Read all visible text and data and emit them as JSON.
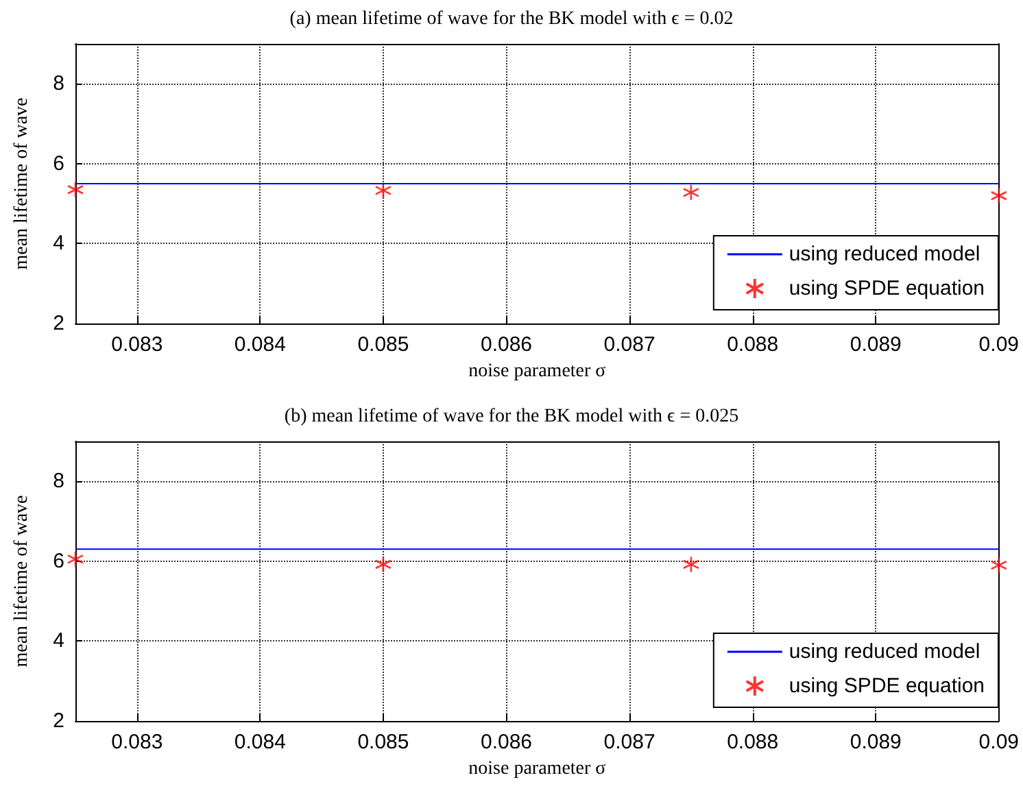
{
  "chart_data": [
    {
      "type": "line",
      "title": "(a) mean lifetime of wave for the BK model with ϵ = 0.02",
      "xlabel": "noise parameter σ",
      "ylabel": "mean lifetime of wave",
      "xlim": [
        0.0825,
        0.09
      ],
      "xticks": [
        0.083,
        0.084,
        0.085,
        0.086,
        0.087,
        0.088,
        0.089,
        0.09
      ],
      "ylim": [
        2,
        9
      ],
      "yticks": [
        2,
        4,
        6,
        8
      ],
      "grid": true,
      "legend": "bottom right",
      "series": [
        {
          "name": "using reduced model",
          "color": "#0000ff",
          "marker": "none",
          "line_style": "solid",
          "x": [
            0.0825,
            0.09
          ],
          "values": [
            5.5,
            5.5
          ]
        },
        {
          "name": "using SPDE equation",
          "type": "scatter",
          "color": "#ff0000",
          "marker": "cross",
          "x": [
            0.0825,
            0.085,
            0.0875,
            0.09
          ],
          "values": [
            5.35,
            5.33,
            5.28,
            5.2
          ]
        }
      ]
    },
    {
      "type": "line",
      "title": "(b) mean lifetime of wave for the BK model with ϵ = 0.025",
      "xlabel": "noise parameter σ",
      "ylabel": "mean lifetime of wave",
      "xlim": [
        0.0825,
        0.09
      ],
      "xticks": [
        0.083,
        0.084,
        0.085,
        0.086,
        0.087,
        0.088,
        0.089,
        0.09
      ],
      "ylim": [
        2,
        9
      ],
      "yticks": [
        2,
        4,
        6,
        8
      ],
      "grid": true,
      "legend": "bottom right",
      "series": [
        {
          "name": "using reduced model",
          "color": "#0000ff",
          "marker": "none",
          "line_style": "solid",
          "x": [
            0.0825,
            0.09
          ],
          "values": [
            6.3,
            6.3
          ]
        },
        {
          "name": "using SPDE equation",
          "type": "scatter",
          "color": "#ff0000",
          "marker": "cross",
          "x": [
            0.0825,
            0.085,
            0.0875,
            0.09
          ],
          "values": [
            6.05,
            5.92,
            5.92,
            5.9
          ]
        }
      ]
    }
  ]
}
